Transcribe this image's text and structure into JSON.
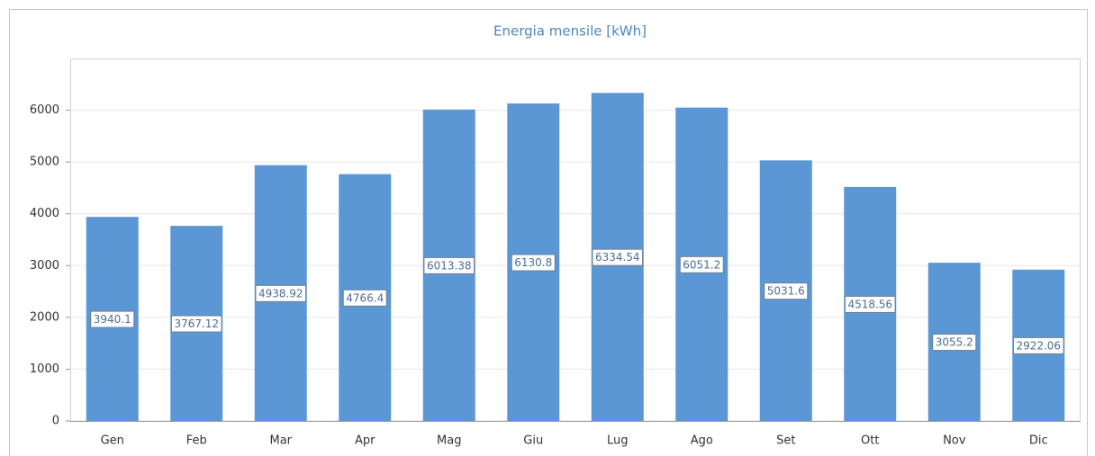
{
  "chart_data": {
    "type": "bar",
    "title": "Energia mensile [kWh]",
    "categories": [
      "Gen",
      "Feb",
      "Mar",
      "Apr",
      "Mag",
      "Giu",
      "Lug",
      "Ago",
      "Set",
      "Ott",
      "Nov",
      "Dic"
    ],
    "values": [
      3940.1,
      3767.12,
      4938.92,
      4766.4,
      6013.38,
      6130.8,
      6334.54,
      6051.2,
      5031.6,
      4518.56,
      3055.2,
      2922.06
    ],
    "color": "#5b97d5",
    "ylim": [
      0,
      7000
    ],
    "yticks": [
      0,
      1000,
      2000,
      3000,
      4000,
      5000,
      6000
    ],
    "grid": true
  }
}
